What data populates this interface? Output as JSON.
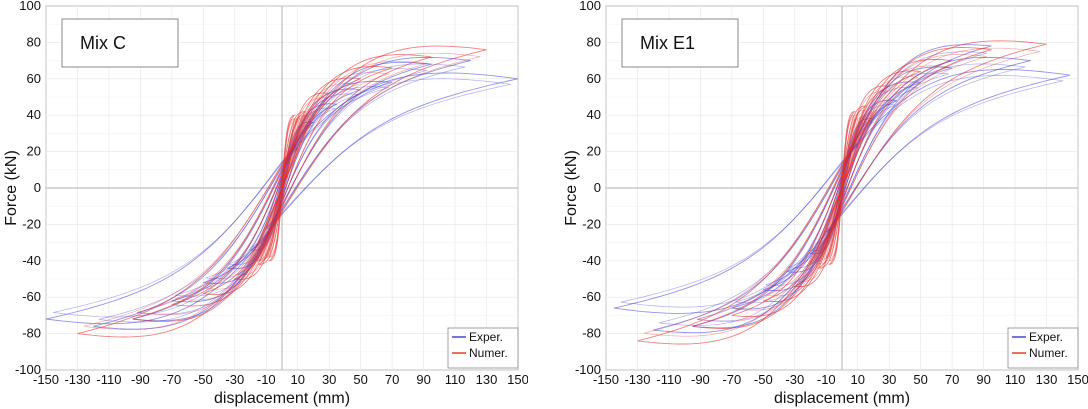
{
  "chart_data": [
    {
      "type": "line",
      "panel_label": "Mix C",
      "xlabel": "displacement (mm)",
      "ylabel": "Force (kN)",
      "xlim": [
        -150,
        150
      ],
      "ylim": [
        -100,
        100
      ],
      "x_ticks": [
        -150,
        -130,
        -110,
        -90,
        -70,
        -50,
        -30,
        -10,
        10,
        30,
        50,
        70,
        90,
        110,
        130,
        150
      ],
      "x_tick_labels": [
        "-150",
        "-130",
        "-110",
        "-90",
        "-70",
        "-50",
        "-30",
        "-10",
        "10",
        "30",
        "50",
        "70",
        "90",
        "110",
        "130",
        "150"
      ],
      "y_ticks": [
        -100,
        -80,
        -60,
        -40,
        -20,
        0,
        20,
        40,
        60,
        80,
        100
      ],
      "y_tick_labels": [
        "-100",
        "-80",
        "-60",
        "-40",
        "-20",
        "0",
        "20",
        "40",
        "60",
        "80",
        "100"
      ],
      "grid": true,
      "legend_position": "bottom-right",
      "series": [
        {
          "name": "Exper.",
          "color": "#3a3ad6",
          "loops": [
            {
              "amp": 10,
              "fmax": 22,
              "fmin": -22,
              "width": 4
            },
            {
              "amp": 20,
              "fmax": 36,
              "fmin": -34,
              "width": 6
            },
            {
              "amp": 35,
              "fmax": 46,
              "fmin": -44,
              "width": 8
            },
            {
              "amp": 50,
              "fmax": 54,
              "fmin": -52,
              "width": 10
            },
            {
              "amp": 70,
              "fmax": 58,
              "fmin": -62,
              "width": 12
            },
            {
              "amp": 95,
              "fmax": 68,
              "fmin": -72,
              "width": 16
            },
            {
              "amp": 120,
              "fmax": 70,
              "fmin": -76,
              "width": 20
            },
            {
              "amp": 150,
              "fmax": 60,
              "fmin": -72,
              "width": 24
            }
          ]
        },
        {
          "name": "Numer.",
          "color": "#e0302e",
          "loops": [
            {
              "amp": 8,
              "fmax": 40,
              "fmin": -40,
              "width": 3
            },
            {
              "amp": 15,
              "fmax": 42,
              "fmin": -42,
              "width": 4
            },
            {
              "amp": 30,
              "fmax": 52,
              "fmin": -50,
              "width": 8
            },
            {
              "amp": 50,
              "fmax": 60,
              "fmin": -58,
              "width": 11
            },
            {
              "amp": 70,
              "fmax": 66,
              "fmin": -64,
              "width": 14
            },
            {
              "amp": 95,
              "fmax": 72,
              "fmin": -72,
              "width": 18
            },
            {
              "amp": 130,
              "fmax": 76,
              "fmin": -80,
              "width": 22
            }
          ]
        }
      ]
    },
    {
      "type": "line",
      "panel_label": "Mix E1",
      "xlabel": "displacement (mm)",
      "ylabel": "Force (kN)",
      "xlim": [
        -150,
        150
      ],
      "ylim": [
        -100,
        100
      ],
      "x_ticks": [
        -150,
        -130,
        -110,
        -90,
        -70,
        -50,
        -30,
        -10,
        10,
        30,
        50,
        70,
        90,
        110,
        130,
        150
      ],
      "x_tick_labels": [
        "-150",
        "-130",
        "-110",
        "-90",
        "-70",
        "-50",
        "-30",
        "-10",
        "10",
        "30",
        "50",
        "70",
        "90",
        "110",
        "130",
        "150"
      ],
      "y_ticks": [
        -100,
        -80,
        -60,
        -40,
        -20,
        0,
        20,
        40,
        60,
        80,
        100
      ],
      "y_tick_labels": [
        "-100",
        "-80",
        "-60",
        "-40",
        "-20",
        "0",
        "20",
        "40",
        "60",
        "80",
        "100"
      ],
      "grid": true,
      "legend_position": "bottom-right",
      "series": [
        {
          "name": "Exper.",
          "color": "#3a3ad6",
          "loops": [
            {
              "amp": 10,
              "fmax": 24,
              "fmin": -24,
              "width": 4
            },
            {
              "amp": 20,
              "fmax": 38,
              "fmin": -36,
              "width": 6
            },
            {
              "amp": 35,
              "fmax": 48,
              "fmin": -46,
              "width": 8
            },
            {
              "amp": 50,
              "fmax": 58,
              "fmin": -56,
              "width": 10
            },
            {
              "amp": 70,
              "fmax": 66,
              "fmin": -66,
              "width": 12
            },
            {
              "amp": 95,
              "fmax": 78,
              "fmin": -76,
              "width": 16
            },
            {
              "amp": 120,
              "fmax": 70,
              "fmin": -78,
              "width": 20
            },
            {
              "amp": 145,
              "fmax": 62,
              "fmin": -66,
              "width": 24
            }
          ]
        },
        {
          "name": "Numer.",
          "color": "#e0302e",
          "loops": [
            {
              "amp": 8,
              "fmax": 42,
              "fmin": -42,
              "width": 3
            },
            {
              "amp": 15,
              "fmax": 45,
              "fmin": -44,
              "width": 4
            },
            {
              "amp": 30,
              "fmax": 56,
              "fmin": -54,
              "width": 8
            },
            {
              "amp": 50,
              "fmax": 64,
              "fmin": -62,
              "width": 11
            },
            {
              "amp": 70,
              "fmax": 70,
              "fmin": -70,
              "width": 14
            },
            {
              "amp": 95,
              "fmax": 76,
              "fmin": -76,
              "width": 18
            },
            {
              "amp": 130,
              "fmax": 79,
              "fmin": -84,
              "width": 22
            }
          ]
        }
      ]
    }
  ]
}
